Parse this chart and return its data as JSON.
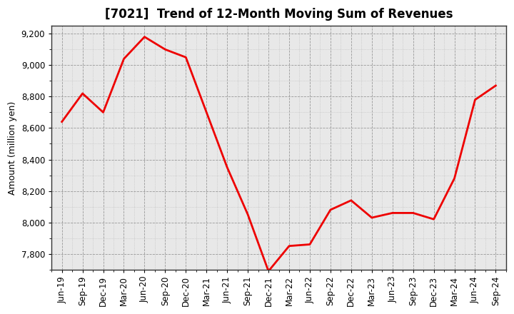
{
  "title": "[7021]  Trend of 12-Month Moving Sum of Revenues",
  "ylabel": "Amount (million yen)",
  "line_color": "#ee0000",
  "background_color": "#ffffff",
  "plot_bg_color": "#e8e8e8",
  "grid_major_color": "#999999",
  "grid_minor_color": "#bbbbbb",
  "border_color": "#333333",
  "ylim": [
    7700,
    9250
  ],
  "yticks": [
    7800,
    8000,
    8200,
    8400,
    8600,
    8800,
    9000,
    9200
  ],
  "x_labels": [
    "Jun-19",
    "Sep-19",
    "Dec-19",
    "Mar-20",
    "Jun-20",
    "Sep-20",
    "Dec-20",
    "Mar-21",
    "Jun-21",
    "Sep-21",
    "Dec-21",
    "Mar-22",
    "Jun-22",
    "Sep-22",
    "Dec-22",
    "Mar-23",
    "Jun-23",
    "Sep-23",
    "Dec-23",
    "Mar-24",
    "Jun-24",
    "Sep-24"
  ],
  "values": [
    8640,
    8820,
    8700,
    9040,
    9180,
    9100,
    9050,
    8700,
    8350,
    8050,
    7690,
    7850,
    7860,
    8080,
    8140,
    8030,
    8060,
    8060,
    8020,
    8280,
    8780,
    8870
  ],
  "title_fontsize": 12,
  "ylabel_fontsize": 9,
  "tick_fontsize": 8.5,
  "line_width": 2.0
}
